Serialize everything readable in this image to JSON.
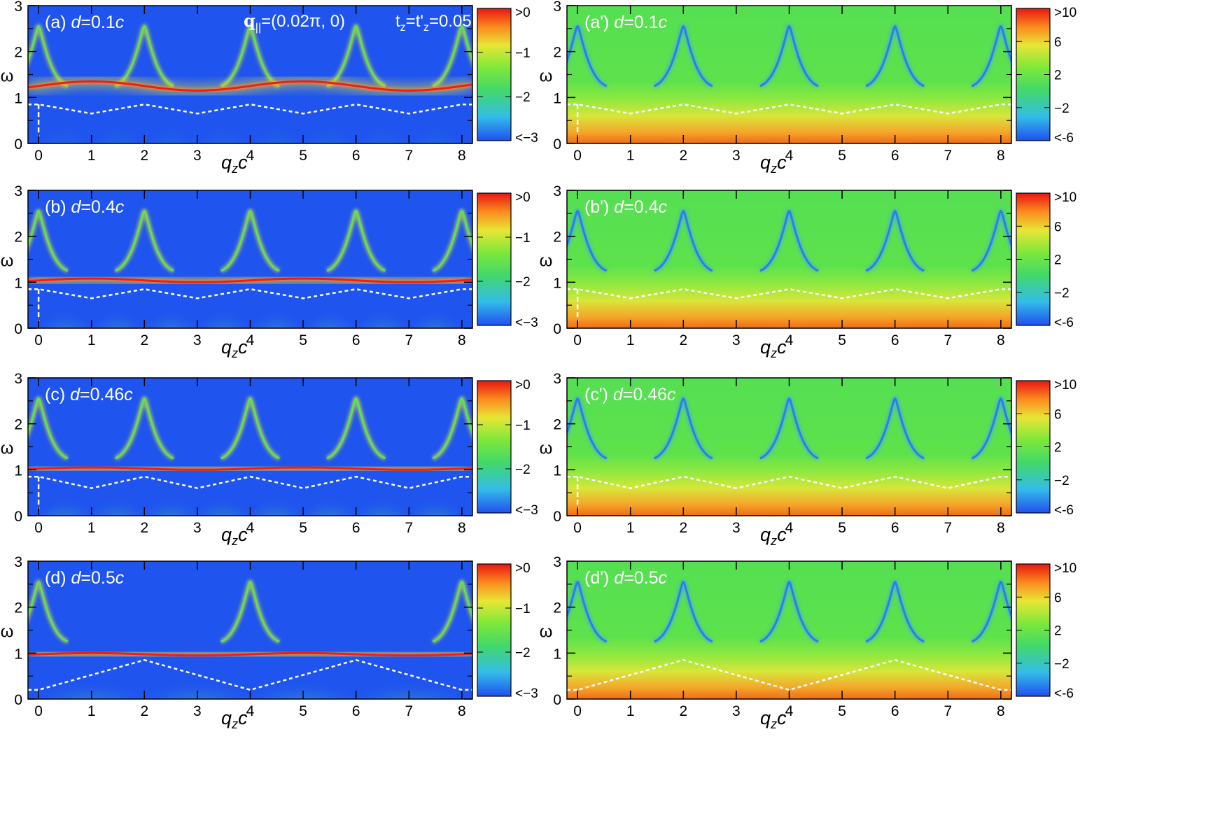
{
  "figure": {
    "header": {
      "q_vector": "q",
      "q_sub": "||",
      "q_value": "=(0.02π, 0)",
      "t_label": "t",
      "t_sub": "z",
      "t_eq": "=t'",
      "t_sub2": "z",
      "t_value": "=0.05"
    },
    "colors": {
      "background_low": "#1f55ee",
      "blue": "#2f6cf2",
      "cyan": "#33bde8",
      "green": "#56e04a",
      "yellow": "#e9e633",
      "orange": "#fb8a1e",
      "red": "#ee1e16",
      "dashed_line": "#ffffff",
      "frame": "#000000"
    }
  },
  "chart_data": [
    {
      "id": "a",
      "type": "heatmap",
      "column": "left",
      "row": 0,
      "panel_label": "(a)",
      "d_label": "d",
      "d_value": "=0.1",
      "c_label": "c",
      "xlabel": "q",
      "xlabel_sub": "z",
      "xlabel_tail": "c",
      "ylabel": "ω",
      "x_ticks": [
        "0",
        "1",
        "2",
        "3",
        "4",
        "5",
        "6",
        "7",
        "8"
      ],
      "y_ticks": [
        "0",
        "1",
        "2",
        "3"
      ],
      "xlim": [
        -0.2,
        8.2
      ],
      "ylim": [
        0,
        3
      ],
      "colorbar": {
        "labels": [
          ">0",
          "−1",
          "−2",
          "<−3"
        ],
        "range": [
          -3,
          0
        ]
      },
      "d": 0.1,
      "dashed_boundary_x": [
        0,
        1,
        2,
        3,
        4,
        5,
        6,
        7,
        8
      ],
      "dashed_boundary_y": [
        0.85,
        0.65,
        0.85,
        0.65,
        0.85,
        0.65,
        0.85,
        0.65,
        0.85
      ],
      "peaks_x": [
        0,
        2,
        4,
        6,
        8
      ],
      "peak_omega": 2.55,
      "mode_omega": [
        1.15,
        1.35
      ]
    },
    {
      "id": "b",
      "type": "heatmap",
      "column": "left",
      "row": 1,
      "panel_label": "(b)",
      "d_label": "d",
      "d_value": "=0.4",
      "c_label": "c",
      "xlabel": "q",
      "xlabel_sub": "z",
      "xlabel_tail": "c",
      "ylabel": "ω",
      "x_ticks": [
        "0",
        "1",
        "2",
        "3",
        "4",
        "5",
        "6",
        "7",
        "8"
      ],
      "y_ticks": [
        "0",
        "1",
        "2",
        "3"
      ],
      "xlim": [
        -0.2,
        8.2
      ],
      "ylim": [
        0,
        3
      ],
      "colorbar": {
        "labels": [
          ">0",
          "−1",
          "−2",
          "<−3"
        ],
        "range": [
          -3,
          0
        ]
      },
      "d": 0.4,
      "dashed_boundary_x": [
        0,
        1,
        2,
        3,
        4,
        5,
        6,
        7,
        8
      ],
      "dashed_boundary_y": [
        0.85,
        0.65,
        0.85,
        0.65,
        0.85,
        0.65,
        0.85,
        0.65,
        0.85
      ],
      "peaks_x": [
        0,
        2,
        4,
        6,
        8
      ],
      "peak_omega": 2.55,
      "mode_omega": [
        1.0,
        1.08
      ]
    },
    {
      "id": "c",
      "type": "heatmap",
      "column": "left",
      "row": 2,
      "panel_label": "(c)",
      "d_label": "d",
      "d_value": "=0.46",
      "c_label": "c",
      "xlabel": "q",
      "xlabel_sub": "z",
      "xlabel_tail": "c",
      "ylabel": "ω",
      "x_ticks": [
        "0",
        "1",
        "2",
        "3",
        "4",
        "5",
        "6",
        "7",
        "8"
      ],
      "y_ticks": [
        "0",
        "1",
        "2",
        "3"
      ],
      "xlim": [
        -0.2,
        8.2
      ],
      "ylim": [
        0,
        3
      ],
      "colorbar": {
        "labels": [
          ">0",
          "−1",
          "−2",
          "<−3"
        ],
        "range": [
          -3,
          0
        ]
      },
      "d": 0.46,
      "dashed_boundary_x": [
        0,
        1,
        2,
        3,
        4,
        5,
        6,
        7,
        8
      ],
      "dashed_boundary_y": [
        0.85,
        0.6,
        0.85,
        0.6,
        0.85,
        0.6,
        0.85,
        0.6,
        0.85
      ],
      "peaks_x": [
        0,
        2,
        4,
        6,
        8
      ],
      "peak_omega": 2.55,
      "mode_omega": [
        1.0,
        1.05
      ]
    },
    {
      "id": "d",
      "type": "heatmap",
      "column": "left",
      "row": 3,
      "panel_label": "(d)",
      "d_label": "d",
      "d_value": "=0.5",
      "c_label": "c",
      "xlabel": "q",
      "xlabel_sub": "z",
      "xlabel_tail": "c",
      "ylabel": "ω",
      "x_ticks": [
        "0",
        "1",
        "2",
        "3",
        "4",
        "5",
        "6",
        "7",
        "8"
      ],
      "y_ticks": [
        "0",
        "1",
        "2",
        "3"
      ],
      "xlim": [
        -0.2,
        8.2
      ],
      "ylim": [
        0,
        3
      ],
      "colorbar": {
        "labels": [
          ">0",
          "−1",
          "−2",
          "<−3"
        ],
        "range": [
          -3,
          0
        ]
      },
      "d": 0.5,
      "dashed_boundary_x": [
        0,
        2,
        4,
        6,
        8
      ],
      "dashed_boundary_y": [
        0.2,
        0.85,
        0.2,
        0.85,
        0.2
      ],
      "peaks_x": [
        0,
        4,
        8
      ],
      "peak_omega": 2.55,
      "mode_omega": [
        0.95,
        1.0
      ]
    },
    {
      "id": "a'",
      "type": "heatmap",
      "column": "right",
      "row": 0,
      "panel_label": "(a')",
      "d_label": "d",
      "d_value": "=0.1",
      "c_label": "c",
      "xlabel": "q",
      "xlabel_sub": "z",
      "xlabel_tail": "c",
      "ylabel": "ω",
      "x_ticks": [
        "0",
        "1",
        "2",
        "3",
        "4",
        "5",
        "6",
        "7",
        "8"
      ],
      "y_ticks": [
        "0",
        "1",
        "2",
        "3"
      ],
      "xlim": [
        -0.2,
        8.2
      ],
      "ylim": [
        0,
        3
      ],
      "colorbar": {
        "labels": [
          ">10",
          "6",
          "2",
          "−2",
          "<-6"
        ],
        "range": [
          -6,
          10
        ]
      },
      "d": 0.1,
      "dashed_boundary_x": [
        0,
        1,
        2,
        3,
        4,
        5,
        6,
        7,
        8
      ],
      "dashed_boundary_y": [
        0.85,
        0.65,
        0.85,
        0.65,
        0.85,
        0.65,
        0.85,
        0.65,
        0.85
      ],
      "peaks_x": [
        0,
        2,
        4,
        6,
        8
      ],
      "peak_omega": 2.55
    },
    {
      "id": "b'",
      "type": "heatmap",
      "column": "right",
      "row": 1,
      "panel_label": "(b')",
      "d_label": "d",
      "d_value": "=0.4",
      "c_label": "c",
      "xlabel": "q",
      "xlabel_sub": "z",
      "xlabel_tail": "c",
      "ylabel": "ω",
      "x_ticks": [
        "0",
        "1",
        "2",
        "3",
        "4",
        "5",
        "6",
        "7",
        "8"
      ],
      "y_ticks": [
        "0",
        "1",
        "2",
        "3"
      ],
      "xlim": [
        -0.2,
        8.2
      ],
      "ylim": [
        0,
        3
      ],
      "colorbar": {
        "labels": [
          ">10",
          "6",
          "2",
          "−2",
          "<-6"
        ],
        "range": [
          -6,
          10
        ]
      },
      "d": 0.4,
      "dashed_boundary_x": [
        0,
        1,
        2,
        3,
        4,
        5,
        6,
        7,
        8
      ],
      "dashed_boundary_y": [
        0.85,
        0.65,
        0.85,
        0.65,
        0.85,
        0.65,
        0.85,
        0.65,
        0.85
      ],
      "peaks_x": [
        0,
        2,
        4,
        6,
        8
      ],
      "peak_omega": 2.55
    },
    {
      "id": "c'",
      "type": "heatmap",
      "column": "right",
      "row": 2,
      "panel_label": "(c')",
      "d_label": "d",
      "d_value": "=0.46",
      "c_label": "c",
      "xlabel": "q",
      "xlabel_sub": "z",
      "xlabel_tail": "c",
      "ylabel": "ω",
      "x_ticks": [
        "0",
        "1",
        "2",
        "3",
        "4",
        "5",
        "6",
        "7",
        "8"
      ],
      "y_ticks": [
        "0",
        "1",
        "2",
        "3"
      ],
      "xlim": [
        -0.2,
        8.2
      ],
      "ylim": [
        0,
        3
      ],
      "colorbar": {
        "labels": [
          ">10",
          "6",
          "2",
          "−2",
          "<-6"
        ],
        "range": [
          -6,
          10
        ]
      },
      "d": 0.46,
      "dashed_boundary_x": [
        0,
        1,
        2,
        3,
        4,
        5,
        6,
        7,
        8
      ],
      "dashed_boundary_y": [
        0.85,
        0.6,
        0.85,
        0.6,
        0.85,
        0.6,
        0.85,
        0.6,
        0.85
      ],
      "peaks_x": [
        0,
        2,
        4,
        6,
        8
      ],
      "peak_omega": 2.55
    },
    {
      "id": "d'",
      "type": "heatmap",
      "column": "right",
      "row": 3,
      "panel_label": "(d')",
      "d_label": "d",
      "d_value": "=0.5",
      "c_label": "c",
      "xlabel": "q",
      "xlabel_sub": "z",
      "xlabel_tail": "c",
      "ylabel": "ω",
      "x_ticks": [
        "0",
        "1",
        "2",
        "3",
        "4",
        "5",
        "6",
        "7",
        "8"
      ],
      "y_ticks": [
        "0",
        "1",
        "2",
        "3"
      ],
      "xlim": [
        -0.2,
        8.2
      ],
      "ylim": [
        0,
        3
      ],
      "colorbar": {
        "labels": [
          ">10",
          "6",
          "2",
          "−2",
          "<-6"
        ],
        "range": [
          -6,
          10
        ]
      },
      "d": 0.5,
      "dashed_boundary_x": [
        0,
        2,
        4,
        6,
        8
      ],
      "dashed_boundary_y": [
        0.2,
        0.85,
        0.2,
        0.85,
        0.2
      ],
      "peaks_x": [
        0,
        2,
        4,
        6,
        8
      ],
      "peak_omega": 2.55
    }
  ]
}
